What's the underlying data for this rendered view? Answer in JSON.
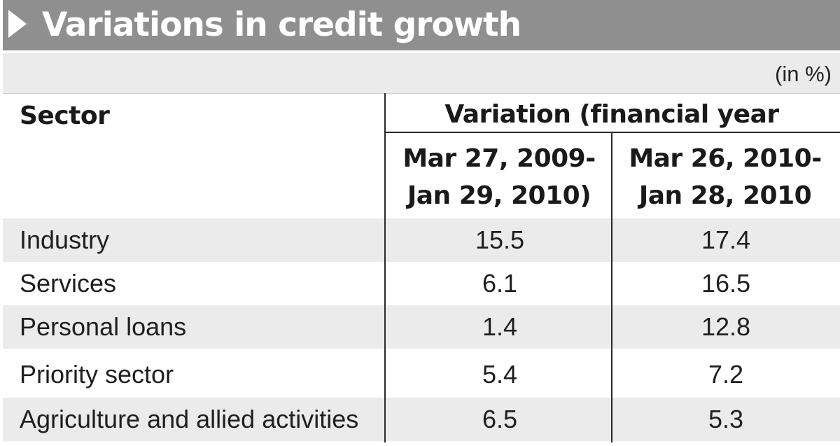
{
  "title": "Variations in credit growth",
  "unit_note": "(in %)",
  "colors": {
    "title_band": "#8f8f8f",
    "title_text": "#ffffff",
    "shaded_row": "#ebebeb",
    "text": "#1f1f1f"
  },
  "chart_data": {
    "type": "table",
    "title": "Variations in credit growth",
    "unit": "(in %)",
    "headers": {
      "sector": "Sector",
      "group": "Variation (financial year",
      "col1_line1": "Mar 27, 2009-",
      "col1_line2": "Jan 29, 2010)",
      "col2_line1": "Mar 26, 2010-",
      "col2_line2": "Jan 28, 2010"
    },
    "rows": [
      {
        "sector": "Industry",
        "v1": "15.5",
        "v2": "17.4"
      },
      {
        "sector": "Services",
        "v1": "6.1",
        "v2": "16.5"
      },
      {
        "sector": "Personal loans",
        "v1": "1.4",
        "v2": "12.8"
      },
      {
        "sector": "Priority sector",
        "v1": "5.4",
        "v2": "7.2"
      },
      {
        "sector": "Agriculture and allied activities",
        "v1": "6.5",
        "v2": "5.3"
      }
    ]
  }
}
